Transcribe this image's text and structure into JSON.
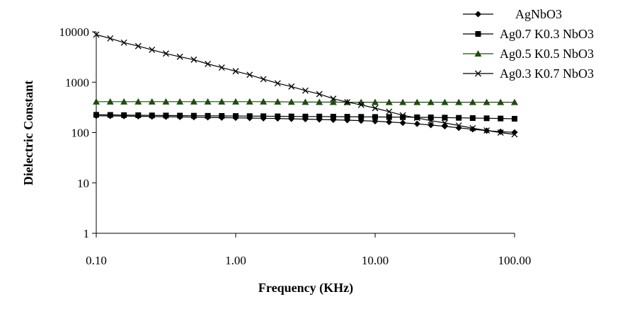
{
  "chart_data": {
    "type": "line",
    "title": "",
    "xlabel": "Frequency (KHz)",
    "ylabel": "Dielectric Constant",
    "xscale": "log",
    "yscale": "log",
    "xlim": [
      0.1,
      100
    ],
    "ylim": [
      1,
      10000
    ],
    "x_ticks": [
      "0.10",
      "1.00",
      "10.00",
      "100.00"
    ],
    "y_ticks": [
      "1",
      "10",
      "100",
      "1000",
      "10000"
    ],
    "grid": false,
    "legend_position": "top-right",
    "series": [
      {
        "name": "AgNbO3",
        "marker": "diamond",
        "color": "#000000",
        "x": [
          0.1,
          0.126,
          0.158,
          0.2,
          0.251,
          0.316,
          0.398,
          0.501,
          0.631,
          0.794,
          1.0,
          1.26,
          1.58,
          2.0,
          2.51,
          3.16,
          3.98,
          5.01,
          6.31,
          7.94,
          10.0,
          12.6,
          15.8,
          20.0,
          25.1,
          31.6,
          39.8,
          50.1,
          63.1,
          79.4,
          100.0
        ],
        "y": [
          215,
          214,
          212,
          210,
          208,
          206,
          204,
          202,
          200,
          198,
          196,
          194,
          192,
          190,
          187,
          185,
          182,
          179,
          176,
          172,
          168,
          162,
          156,
          149,
          141,
          133,
          124,
          116,
          109,
          104,
          101
        ]
      },
      {
        "name": "Ag0.7 K0.3 NbO3",
        "marker": "square",
        "color": "#000000",
        "x": [
          0.1,
          0.126,
          0.158,
          0.2,
          0.251,
          0.316,
          0.398,
          0.501,
          0.631,
          0.794,
          1.0,
          1.26,
          1.58,
          2.0,
          2.51,
          3.16,
          3.98,
          5.01,
          6.31,
          7.94,
          10.0,
          12.6,
          15.8,
          20.0,
          25.1,
          31.6,
          39.8,
          50.1,
          63.1,
          79.4,
          100.0
        ],
        "y": [
          225,
          224,
          222,
          221,
          219,
          218,
          217,
          216,
          215,
          214,
          213,
          212,
          211,
          210,
          209,
          208,
          208,
          207,
          206,
          205,
          204,
          203,
          202,
          201,
          200,
          198,
          196,
          194,
          192,
          190,
          188
        ]
      },
      {
        "name": "Ag0.5 K0.5 NbO3",
        "marker": "triangle",
        "color": "#1e4d0f",
        "x": [
          0.1,
          0.126,
          0.158,
          0.2,
          0.251,
          0.316,
          0.398,
          0.501,
          0.631,
          0.794,
          1.0,
          1.26,
          1.58,
          2.0,
          2.51,
          3.16,
          3.98,
          5.01,
          6.31,
          7.94,
          10.0,
          12.6,
          15.8,
          20.0,
          25.1,
          31.6,
          39.8,
          50.1,
          63.1,
          79.4,
          100.0
        ],
        "y": [
          410,
          410,
          410,
          410,
          410,
          410,
          410,
          410,
          410,
          410,
          410,
          410,
          410,
          408,
          405,
          403,
          402,
          401,
          400,
          400,
          400,
          400,
          400,
          400,
          400,
          400,
          400,
          400,
          400,
          400,
          400
        ]
      },
      {
        "name": "Ag0.3 K0.7 NbO3",
        "marker": "x",
        "color": "#000000",
        "x": [
          0.1,
          0.126,
          0.158,
          0.2,
          0.251,
          0.316,
          0.398,
          0.501,
          0.631,
          0.794,
          1.0,
          1.26,
          1.58,
          2.0,
          2.51,
          3.16,
          3.98,
          5.01,
          6.31,
          7.94,
          10.0,
          12.6,
          15.8,
          20.0,
          25.1,
          31.6,
          39.8,
          50.1,
          63.1,
          79.4,
          100.0
        ],
        "y": [
          8800,
          7400,
          6100,
          5200,
          4400,
          3700,
          3200,
          2800,
          2300,
          1950,
          1650,
          1400,
          1150,
          950,
          820,
          680,
          580,
          470,
          400,
          355,
          305,
          260,
          220,
          195,
          172,
          155,
          138,
          122,
          110,
          100,
          92
        ]
      }
    ]
  }
}
